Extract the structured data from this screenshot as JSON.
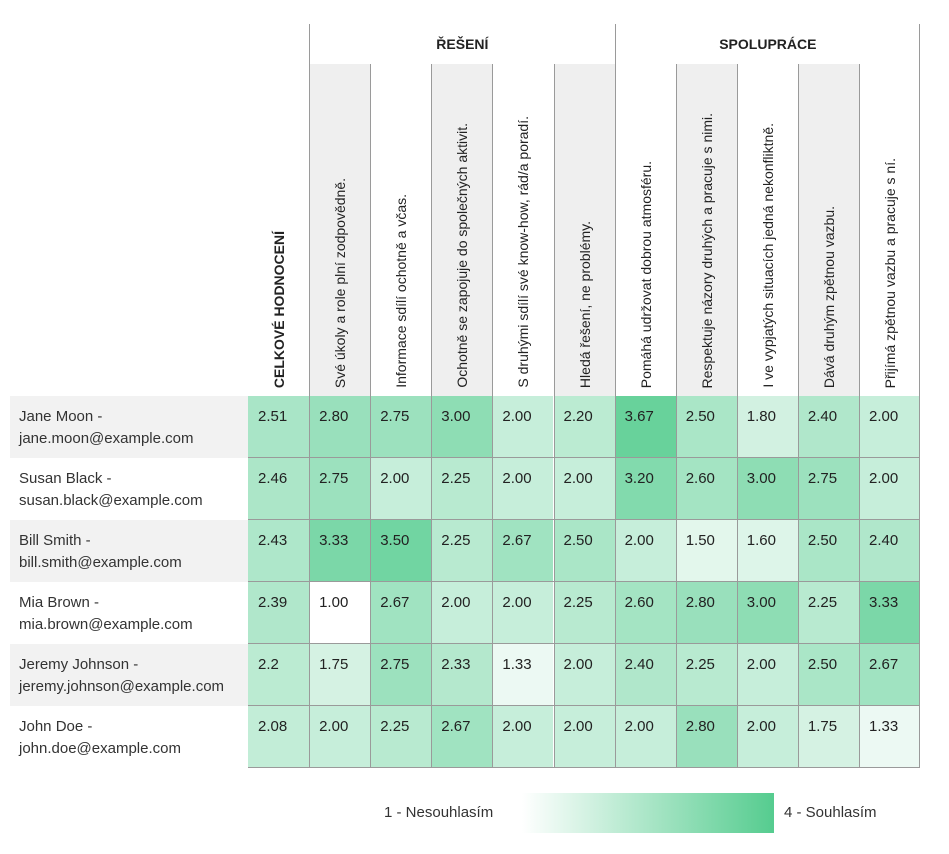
{
  "groups": [
    {
      "label": "ŘEŠENÍ",
      "first_col": 1,
      "last_col": 5
    },
    {
      "label": "SPOLUPRÁCE",
      "first_col": 6,
      "last_col": 10
    }
  ],
  "columns": [
    "CELKOVÉ HODNOCENÍ",
    "Své úkoly a role plní zodpovědně.",
    "Informace sdílí ochotně a včas.",
    "Ochotně se zapojuje do společných aktivit.",
    "S druhými sdílí své know-how, rád/a poradí.",
    "Hledá řešení, ne problémy.",
    "Pomáhá udržovat dobrou atmosféru.",
    "Respektuje názory druhých a pracuje s nimi.",
    "I ve vypjatých situacích jedná nekonfliktně.",
    "Dává druhým zpětnou vazbu.",
    "Přijímá zpětnou vazbu a pracuje s ní."
  ],
  "rows": [
    {
      "name": "Jane Moon -",
      "email": "jane.moon@example.com",
      "values": [
        "2.51",
        "2.80",
        "2.75",
        "3.00",
        "2.00",
        "2.20",
        "3.67",
        "2.50",
        "1.80",
        "2.40",
        "2.00"
      ]
    },
    {
      "name": "Susan Black -",
      "email": "susan.black@example.com",
      "values": [
        "2.46",
        "2.75",
        "2.00",
        "2.25",
        "2.00",
        "2.00",
        "3.20",
        "2.60",
        "3.00",
        "2.75",
        "2.00"
      ]
    },
    {
      "name": "Bill Smith -",
      "email": "bill.smith@example.com",
      "values": [
        "2.43",
        "3.33",
        "3.50",
        "2.25",
        "2.67",
        "2.50",
        "2.00",
        "1.50",
        "1.60",
        "2.50",
        "2.40"
      ]
    },
    {
      "name": "Mia Brown -",
      "email": "mia.brown@example.com",
      "values": [
        "2.39",
        "1.00",
        "2.67",
        "2.00",
        "2.00",
        "2.25",
        "2.60",
        "2.80",
        "3.00",
        "2.25",
        "3.33"
      ]
    },
    {
      "name": "Jeremy Johnson -",
      "email": "jeremy.johnson@example.com",
      "values": [
        "2.2",
        "1.75",
        "2.75",
        "2.33",
        "1.33",
        "2.00",
        "2.40",
        "2.25",
        "2.00",
        "2.50",
        "2.67"
      ]
    },
    {
      "name": "John Doe -",
      "email": "john.doe@example.com",
      "values": [
        "2.08",
        "2.00",
        "2.25",
        "2.67",
        "2.00",
        "2.00",
        "2.00",
        "2.80",
        "2.00",
        "1.75",
        "1.33"
      ]
    }
  ],
  "scale": {
    "min": 1,
    "max": 4,
    "color_low": "#ffffff",
    "color_high": "#55cc8f"
  },
  "legend": {
    "low_label": "1 - Nesouhlasím",
    "high_label": "4 - Souhlasím"
  }
}
